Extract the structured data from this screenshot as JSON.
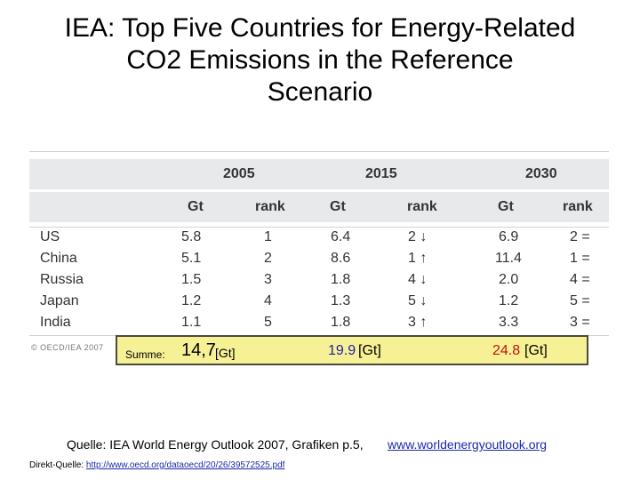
{
  "title": {
    "line1": "IEA: Top Five Countries for Energy-Related",
    "line2": "CO2 Emissions in the Reference",
    "line3": "Scenario"
  },
  "table": {
    "years": [
      "2005",
      "2015",
      "2030"
    ],
    "subheaders": [
      "Gt",
      "rank",
      "Gt",
      "rank",
      "Gt",
      "rank"
    ],
    "rows": [
      {
        "country": "US",
        "cells": [
          "5.8",
          "1",
          "6.4",
          "2 ↓",
          "6.9",
          "2 ="
        ]
      },
      {
        "country": "China",
        "cells": [
          "5.1",
          "2",
          "8.6",
          "1 ↑",
          "11.4",
          "1 ="
        ]
      },
      {
        "country": "Russia",
        "cells": [
          "1.5",
          "3",
          "1.8",
          "4 ↓",
          "2.0",
          "4 ="
        ]
      },
      {
        "country": "Japan",
        "cells": [
          "1.2",
          "4",
          "1.3",
          "5 ↓",
          "1.2",
          "5 ="
        ]
      },
      {
        "country": "India",
        "cells": [
          "1.1",
          "5",
          "1.8",
          "3 ↑",
          "3.3",
          "3 ="
        ]
      }
    ],
    "copyright": "© OECD/IEA 2007"
  },
  "summary": {
    "label": "Summe:",
    "v2005": "14,7",
    "u2005": "[Gt]",
    "v2015": "19.9",
    "u2015": "[Gt]",
    "v2030": "24.8",
    "u2030": "[Gt]"
  },
  "source": {
    "quelle": "Quelle: IEA World Energy Outlook 2007, Grafiken p.5,",
    "website": "www.worldenergyoutlook.org",
    "direct_label": "Direkt-Quelle:",
    "direct_url": "http://www.oecd.org/dataoecd/20/26/39572525.pdf"
  },
  "colors": {
    "summary_bg": "#f7f196",
    "value_2015": "#1c1ca8",
    "value_2030": "#c41010",
    "link": "#1a2aa8"
  }
}
